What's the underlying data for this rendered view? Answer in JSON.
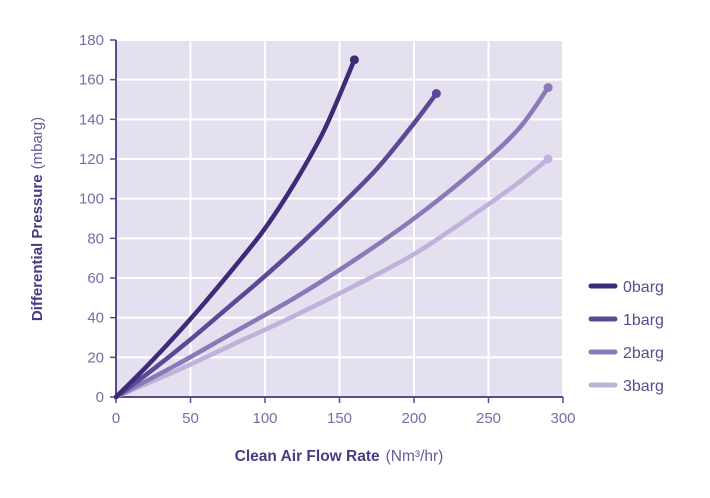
{
  "chart_data": {
    "type": "line",
    "title": "",
    "xlabel": "Clean Air Flow Rate",
    "xlabel_unit": "(Nm³/hr)",
    "ylabel": "Differential Pressure",
    "ylabel_unit": "(mbarg)",
    "xlim": [
      0,
      300
    ],
    "ylim": [
      0,
      180
    ],
    "x_ticks": [
      "0",
      "50",
      "100",
      "150",
      "200",
      "250",
      "300"
    ],
    "y_ticks": [
      "0",
      "20",
      "40",
      "60",
      "80",
      "100",
      "120",
      "140",
      "160",
      "180"
    ],
    "grid": true,
    "legend_position": "right",
    "series": [
      {
        "name": "0barg",
        "color": "#3d2a78",
        "x": [
          0,
          20,
          40,
          60,
          80,
          100,
          120,
          140,
          160
        ],
        "y": [
          0,
          15,
          31,
          48,
          66,
          85,
          108,
          135,
          170
        ]
      },
      {
        "name": "1barg",
        "color": "#5c4896",
        "x": [
          0,
          25,
          50,
          75,
          100,
          125,
          150,
          175,
          200,
          215
        ],
        "y": [
          0,
          14,
          29,
          45,
          61,
          78,
          96,
          115,
          138,
          153
        ]
      },
      {
        "name": "2barg",
        "color": "#8a78b8",
        "x": [
          0,
          40,
          80,
          120,
          160,
          200,
          240,
          270,
          290
        ],
        "y": [
          0,
          16,
          33,
          50,
          69,
          90,
          114,
          135,
          156
        ]
      },
      {
        "name": "3barg",
        "color": "#bfb2da",
        "x": [
          0,
          40,
          80,
          120,
          160,
          200,
          240,
          270,
          290
        ],
        "y": [
          0,
          13,
          27,
          41,
          56,
          72,
          92,
          108,
          120
        ]
      }
    ]
  }
}
